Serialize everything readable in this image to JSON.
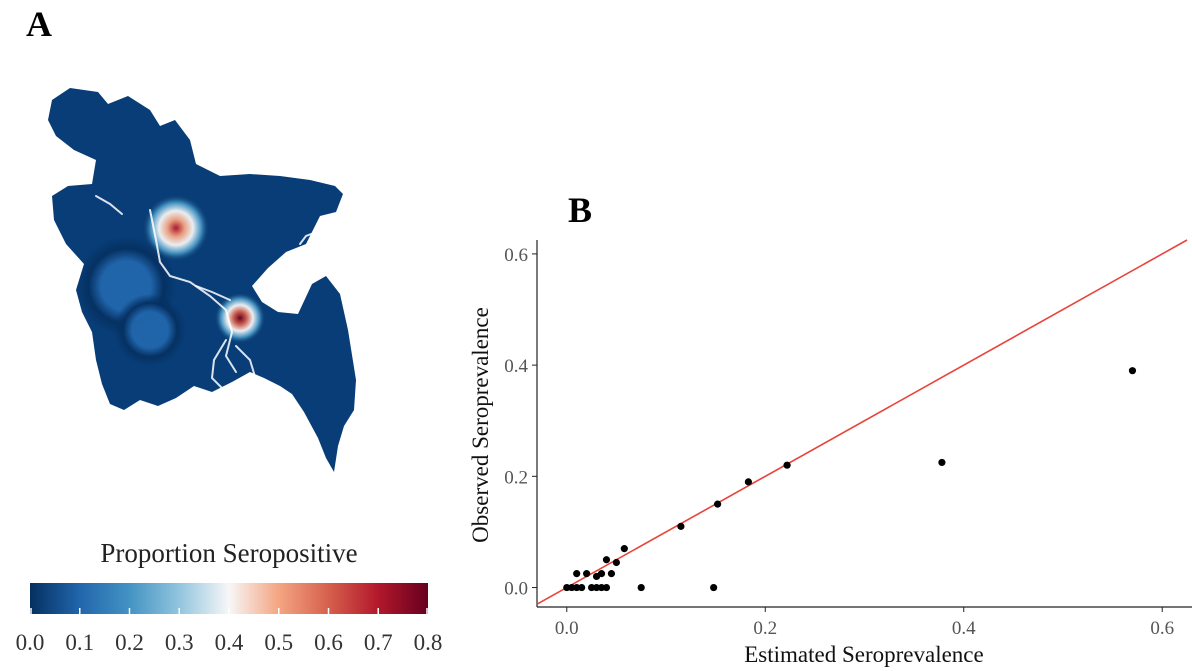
{
  "chart_data": [
    {
      "type": "heatmap",
      "panel_label": "A",
      "legend": {
        "title": "Proportion Seropositive",
        "ticks": [
          "0.0",
          "0.1",
          "0.2",
          "0.3",
          "0.4",
          "0.5",
          "0.6",
          "0.7",
          "0.8"
        ],
        "range": [
          0,
          0.8
        ],
        "colors": [
          "#053061",
          "#2166ac",
          "#4393c3",
          "#92c5de",
          "#f7f7f7",
          "#f4a582",
          "#d6604d",
          "#b2182b",
          "#67001f"
        ]
      },
      "map_base_color": "#083d77",
      "hotspots": [
        {
          "value": 0.72
        },
        {
          "value": 0.78
        },
        {
          "value": 0.15
        },
        {
          "value": 0.12
        }
      ]
    },
    {
      "type": "scatter",
      "panel_label": "B",
      "xlabel": "Estimated Seroprevalence",
      "ylabel": "Observed Seroprevalence",
      "xlim": [
        -0.03,
        0.63
      ],
      "ylim": [
        -0.035,
        0.625
      ],
      "xticks": [
        0.0,
        0.2,
        0.4,
        0.6
      ],
      "yticks": [
        0.0,
        0.2,
        0.4,
        0.6
      ],
      "xtick_labels": [
        "0.0",
        "0.2",
        "0.4",
        "0.6"
      ],
      "ytick_labels": [
        "0.0",
        "0.2",
        "0.4",
        "0.6"
      ],
      "grid": false,
      "reference_line": {
        "slope": 1,
        "intercept": 0,
        "color": "#e8443a"
      },
      "point_color": "#000000",
      "points": [
        {
          "x": 0.0,
          "y": 0.0
        },
        {
          "x": 0.005,
          "y": 0.0
        },
        {
          "x": 0.01,
          "y": 0.0
        },
        {
          "x": 0.015,
          "y": 0.0
        },
        {
          "x": 0.01,
          "y": 0.025
        },
        {
          "x": 0.02,
          "y": 0.025
        },
        {
          "x": 0.025,
          "y": 0.0
        },
        {
          "x": 0.03,
          "y": 0.0
        },
        {
          "x": 0.03,
          "y": 0.02
        },
        {
          "x": 0.035,
          "y": 0.025
        },
        {
          "x": 0.035,
          "y": 0.0
        },
        {
          "x": 0.04,
          "y": 0.0
        },
        {
          "x": 0.04,
          "y": 0.05
        },
        {
          "x": 0.045,
          "y": 0.025
        },
        {
          "x": 0.05,
          "y": 0.045
        },
        {
          "x": 0.058,
          "y": 0.07
        },
        {
          "x": 0.075,
          "y": 0.0
        },
        {
          "x": 0.115,
          "y": 0.11
        },
        {
          "x": 0.148,
          "y": 0.0
        },
        {
          "x": 0.152,
          "y": 0.15
        },
        {
          "x": 0.183,
          "y": 0.19
        },
        {
          "x": 0.222,
          "y": 0.22
        },
        {
          "x": 0.378,
          "y": 0.225
        },
        {
          "x": 0.57,
          "y": 0.39
        }
      ]
    }
  ]
}
